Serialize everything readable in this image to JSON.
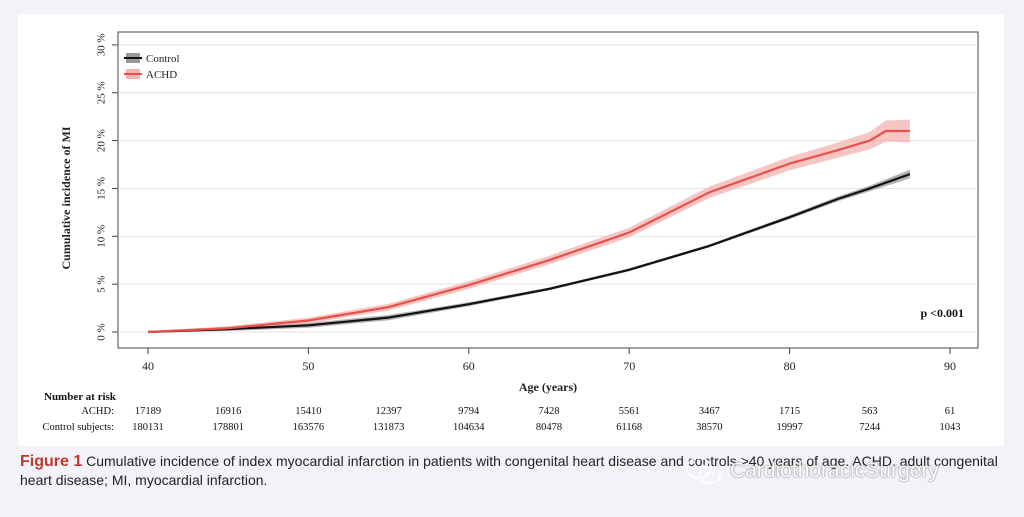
{
  "chart_data": {
    "type": "line",
    "ylabel": "Cumulative incidence of MI",
    "xlabel": "Age (years)",
    "xlim": [
      40,
      90
    ],
    "ylim": [
      0,
      30
    ],
    "x_ticks": [
      40,
      50,
      60,
      70,
      80,
      90
    ],
    "y_ticks": [
      "0 %",
      "5 %",
      "10 %",
      "15 %",
      "20 %",
      "25 %",
      "30 %"
    ],
    "y_tick_values": [
      0,
      5,
      10,
      15,
      20,
      25,
      30
    ],
    "grid": true,
    "legend_position": "top-left",
    "annotation": "p <0.001",
    "series": [
      {
        "name": "Control",
        "color": "#111111",
        "band_color": "#9a9a9a",
        "x": [
          40,
          45,
          50,
          55,
          60,
          65,
          70,
          75,
          80,
          83,
          85,
          87.5
        ],
        "y": [
          0,
          0.3,
          0.7,
          1.5,
          2.9,
          4.5,
          6.5,
          9.0,
          12.0,
          13.9,
          15.0,
          16.5
        ],
        "band": [
          0.12,
          0.2,
          0.25,
          0.28,
          0.2,
          0.15,
          0.15,
          0.15,
          0.2,
          0.25,
          0.3,
          0.45
        ]
      },
      {
        "name": "ACHD",
        "color": "#e8514a",
        "band_color": "#f3b3b0",
        "x": [
          40,
          45,
          50,
          55,
          60,
          65,
          70,
          75,
          80,
          83,
          85,
          86,
          87.5
        ],
        "y": [
          0,
          0.4,
          1.2,
          2.6,
          4.9,
          7.5,
          10.4,
          14.6,
          17.6,
          19.0,
          20.0,
          21.0,
          21.0
        ],
        "band": [
          0.1,
          0.2,
          0.3,
          0.35,
          0.4,
          0.45,
          0.5,
          0.6,
          0.7,
          0.8,
          0.9,
          1.1,
          1.2
        ]
      }
    ],
    "number_at_risk": {
      "title": "Number at risk",
      "rows": [
        {
          "label": "ACHD:",
          "values": [
            "17189",
            "16916",
            "15410",
            "12397",
            "9794",
            "7428",
            "5561",
            "3467",
            "1715",
            "563",
            "61"
          ]
        },
        {
          "label": "Control subjects:",
          "values": [
            "180131",
            "178801",
            "163576",
            "131873",
            "104634",
            "80478",
            "61168",
            "38570",
            "19997",
            "7244",
            "1043"
          ]
        }
      ],
      "ages": [
        40,
        45,
        50,
        55,
        60,
        65,
        70,
        75,
        80,
        85,
        90
      ]
    }
  },
  "caption": {
    "label": "Figure 1",
    "text": "Cumulative incidence of index myocardial infarction in patients with congenital heart disease and controls >40 years of age. ACHD, adult congenital heart disease; MI, myocardial infarction."
  },
  "watermark": {
    "text": "CardiothoracicSurgery",
    "icon": "wechat-icon"
  }
}
